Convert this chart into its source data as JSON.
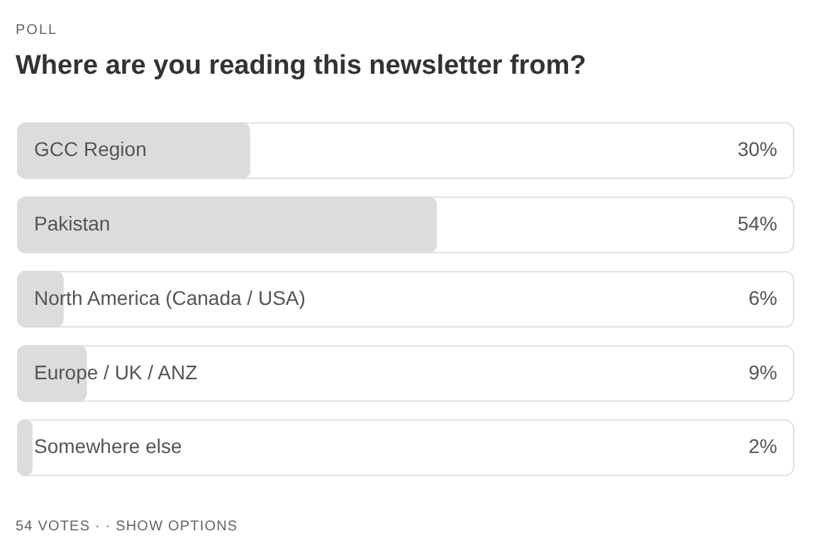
{
  "chart_data": {
    "type": "bar",
    "orientation": "horizontal",
    "title": "Where are you reading this newsletter from?",
    "annotations": [
      "POLL",
      "54 VOTES · · SHOW OPTIONS"
    ],
    "categories": [
      "GCC Region",
      "Pakistan",
      "North America (Canada / USA)",
      "Europe / UK / ANZ",
      "Somewhere else"
    ],
    "values": [
      30,
      54,
      6,
      9,
      2
    ],
    "value_labels": [
      "30%",
      "54%",
      "6%",
      "9%",
      "2%"
    ],
    "color": "#dcdcdc",
    "xlim": [
      0,
      100
    ],
    "tick_labels": false,
    "legend": false
  }
}
